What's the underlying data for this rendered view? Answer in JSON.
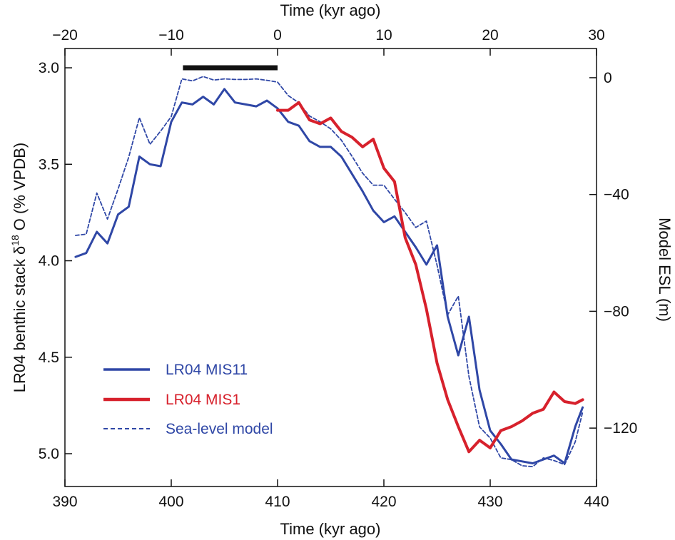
{
  "chart_data": {
    "type": "line",
    "title": "",
    "x_bottom": {
      "label": "Time (kyr ago)",
      "range": [
        390,
        440
      ],
      "ticks": [
        "390",
        "400",
        "410",
        "420",
        "430",
        "440"
      ]
    },
    "x_top": {
      "label": "Time (kyr ago)",
      "range": [
        -20,
        30
      ],
      "ticks": [
        "−20",
        "−10",
        "0",
        "10",
        "20",
        "30"
      ]
    },
    "y_left": {
      "label_prefix": "LR04 benthic stack δ",
      "label_sup": "18",
      "label_suffix": "O (% VPDB)",
      "range": [
        5.17,
        2.9
      ],
      "ticks": [
        "3.0",
        "3.5",
        "4.0",
        "4.5",
        "5.0"
      ]
    },
    "y_right": {
      "label": "Model ESL (m)",
      "range": [
        -140,
        10
      ],
      "ticks": [
        "0",
        "−40",
        "−80",
        "−120"
      ]
    },
    "grid": false,
    "legend_position": "bottom-left",
    "bar_segment": {
      "x_top": [
        -8.9,
        0
      ],
      "y": 3.0
    },
    "series": [
      {
        "name": "LR04 MIS11",
        "color": "#2f47a6",
        "style": "solid",
        "axis": "left",
        "x": [
          391,
          392,
          393,
          394,
          395,
          396,
          397,
          398,
          399,
          400,
          401,
          402,
          403,
          404,
          405,
          406,
          407,
          408,
          409,
          410,
          411,
          412,
          413,
          414,
          415,
          416,
          417,
          418,
          419,
          420,
          421,
          422,
          423,
          424,
          425,
          426,
          427,
          428,
          429,
          430,
          431,
          432,
          433,
          434,
          435,
          436,
          437,
          438,
          438.7
        ],
        "values": [
          3.98,
          3.96,
          3.85,
          3.91,
          3.76,
          3.72,
          3.46,
          3.5,
          3.51,
          3.28,
          3.18,
          3.19,
          3.15,
          3.19,
          3.11,
          3.18,
          3.19,
          3.2,
          3.17,
          3.21,
          3.28,
          3.3,
          3.38,
          3.41,
          3.41,
          3.46,
          3.55,
          3.64,
          3.74,
          3.8,
          3.77,
          3.85,
          3.93,
          4.02,
          3.92,
          4.29,
          4.49,
          4.29,
          4.67,
          4.88,
          4.95,
          5.03,
          5.04,
          5.05,
          5.03,
          5.01,
          5.05,
          4.86,
          4.76
        ]
      },
      {
        "name": "LR04 MIS1",
        "color": "#d7212c",
        "style": "solid",
        "axis": "left",
        "x": [
          410,
          411,
          412,
          413,
          414,
          415,
          416,
          417,
          418,
          419,
          420,
          421,
          422,
          423,
          424,
          425,
          426,
          427,
          428,
          429,
          430,
          431,
          432,
          433,
          434,
          435,
          436,
          437,
          438,
          438.7
        ],
        "values": [
          3.22,
          3.22,
          3.18,
          3.27,
          3.29,
          3.26,
          3.33,
          3.36,
          3.41,
          3.37,
          3.52,
          3.59,
          3.88,
          4.02,
          4.25,
          4.53,
          4.72,
          4.86,
          4.99,
          4.93,
          4.97,
          4.88,
          4.86,
          4.83,
          4.79,
          4.77,
          4.68,
          4.73,
          4.74,
          4.72
        ]
      },
      {
        "name": "Sea-level model",
        "color": "#2f47a6",
        "style": "dashed",
        "axis": "right",
        "x": [
          391,
          392,
          393,
          394,
          395,
          396,
          397,
          398,
          399,
          400,
          401,
          402,
          403,
          404,
          405,
          406,
          407,
          408,
          409,
          410,
          411,
          412,
          413,
          414,
          415,
          416,
          417,
          418,
          419,
          420,
          421,
          422,
          423,
          424,
          425,
          426,
          427,
          428,
          429,
          430,
          431,
          432,
          433,
          434,
          435,
          436,
          437,
          438,
          438.7
        ],
        "values": [
          -54.0,
          -53.6,
          -39.5,
          -48.4,
          -38.1,
          -27.2,
          -13.7,
          -22.8,
          -18.3,
          -13.3,
          -0.4,
          -1.1,
          0.4,
          -0.8,
          -0.4,
          -0.6,
          -0.6,
          -0.4,
          -0.9,
          -1.5,
          -6.1,
          -8.6,
          -13.1,
          -15.1,
          -17.5,
          -21.4,
          -26.9,
          -32.7,
          -36.8,
          -36.8,
          -41.6,
          -46.2,
          -51.3,
          -49.1,
          -64.2,
          -81.2,
          -74.8,
          -102.3,
          -119.6,
          -123.4,
          -130.2,
          -130.8,
          -132.9,
          -133.2,
          -130.2,
          -131.1,
          -132.5,
          -124.7,
          -114.5
        ]
      }
    ]
  }
}
